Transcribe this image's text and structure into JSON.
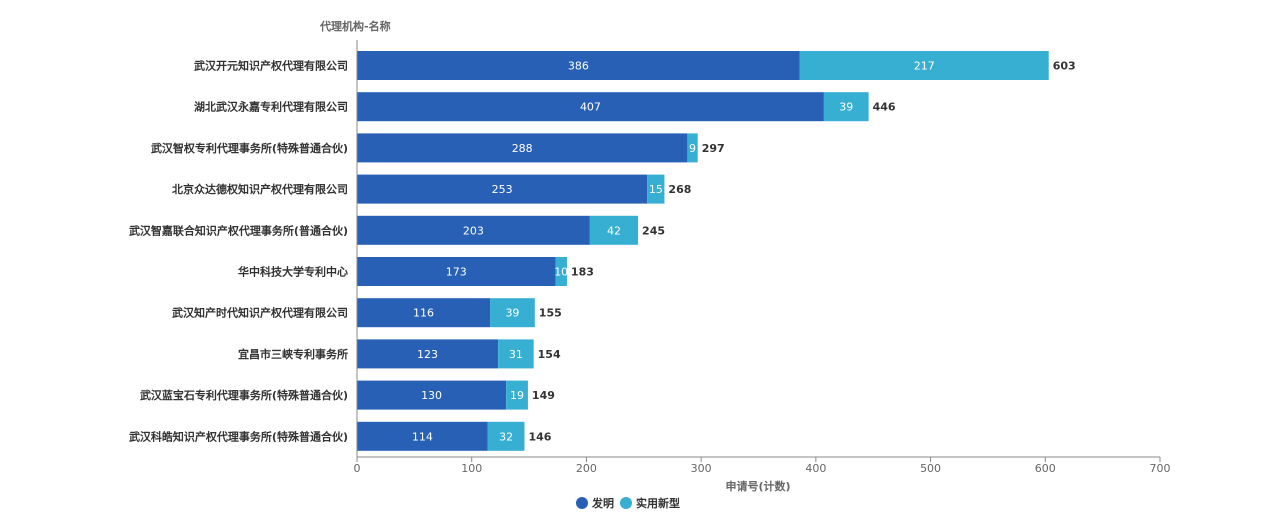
{
  "chart_data": {
    "type": "bar",
    "orientation": "horizontal",
    "stacked": true,
    "y_axis_title": "代理机构-名称",
    "xlabel": "申请号(计数)",
    "xlim": [
      0,
      700
    ],
    "x_ticks": [
      "0",
      "100",
      "200",
      "300",
      "400",
      "500",
      "600",
      "700"
    ],
    "x_tick_values": [
      0,
      100,
      200,
      300,
      400,
      500,
      600,
      700
    ],
    "categories": [
      "武汉开元知识产权代理有限公司",
      "湖北武汉永嘉专利代理有限公司",
      "武汉智权专利代理事务所(特殊普通合伙)",
      "北京众达德权知识产权代理有限公司",
      "武汉智嘉联合知识产权代理事务所(普通合伙)",
      "华中科技大学专利中心",
      "武汉知产时代知识产权代理有限公司",
      "宜昌市三峡专利事务所",
      "武汉蓝宝石专利代理事务所(特殊普通合伙)",
      "武汉科皓知识产权代理事务所(特殊普通合伙)"
    ],
    "series": [
      {
        "name": "发明",
        "color": "#2760b5",
        "values": [
          386,
          407,
          288,
          253,
          203,
          173,
          116,
          123,
          130,
          114
        ]
      },
      {
        "name": "实用新型",
        "color": "#36afd2",
        "values": [
          217,
          39,
          9,
          15,
          42,
          10,
          39,
          31,
          19,
          32
        ]
      }
    ],
    "totals": [
      603,
      446,
      297,
      268,
      245,
      183,
      155,
      154,
      149,
      146
    ],
    "legend_position": "bottom-center",
    "grid": false
  }
}
